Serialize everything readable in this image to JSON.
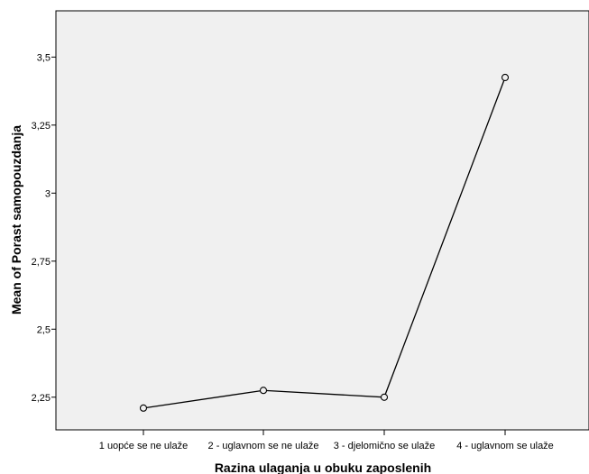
{
  "chart_data": {
    "type": "line",
    "title": "",
    "xlabel": "Razina ulaganja u obuku zaposlenih",
    "ylabel": "Mean of Porast samopouzdanja",
    "categories": [
      "1 uopće se ne ulaže",
      "2 - uglavnom se ne ulaže",
      "3 - djelomično se ulaže",
      "4 - uglavnom se ulaže"
    ],
    "series": [
      {
        "values": [
          2.21,
          2.275,
          2.25,
          3.425
        ]
      }
    ],
    "ylim": [
      2.13,
      3.67
    ],
    "yticks": [
      2.25,
      2.5,
      2.75,
      3,
      3.25,
      3.5
    ],
    "ytick_labels": [
      "2,25",
      "2,5",
      "2,75",
      "3",
      "3,25",
      "3,5"
    ],
    "grid": false,
    "legend": "none",
    "colors": {
      "plot_background": "#f0f0f0",
      "line": "#000000",
      "frame": "#000000"
    }
  }
}
